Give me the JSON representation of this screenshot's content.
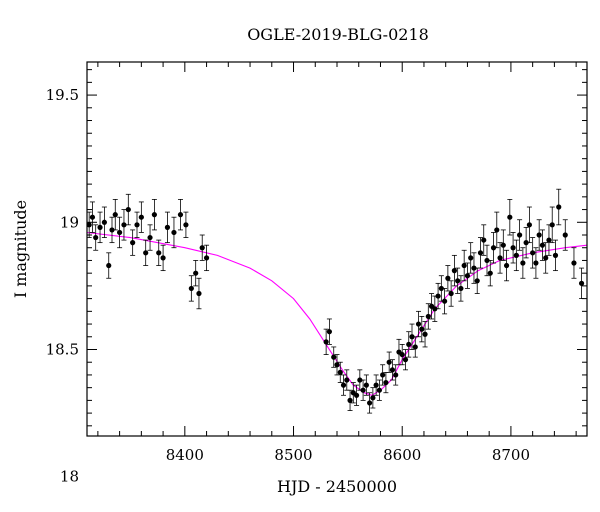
{
  "chart_data": {
    "type": "scatter",
    "title": "OGLE-2019-BLG-0218",
    "xlabel": "HJD - 2450000",
    "ylabel": "I magnitude",
    "xlim": [
      8310,
      8770
    ],
    "ylim": [
      19.63,
      18.16
    ],
    "y_inverted": true,
    "xticks": [
      8400,
      8500,
      8600,
      8700
    ],
    "yticks": [
      18,
      18.5,
      19,
      19.5
    ],
    "grid": false,
    "colors": {
      "points": "#000000",
      "model": "#ff00ff"
    },
    "model": {
      "name": "",
      "x": [
        8310,
        8350,
        8400,
        8430,
        8460,
        8480,
        8500,
        8515,
        8530,
        8545,
        8555,
        8565,
        8572,
        8580,
        8590,
        8600,
        8615,
        8630,
        8650,
        8670,
        8690,
        8720,
        8750,
        8770
      ],
      "y": [
        18.96,
        18.94,
        18.9,
        18.87,
        18.82,
        18.77,
        18.7,
        18.62,
        18.52,
        18.42,
        18.36,
        18.33,
        18.32,
        18.34,
        18.38,
        18.46,
        18.56,
        18.66,
        18.75,
        18.81,
        18.85,
        18.88,
        18.9,
        18.91
      ]
    },
    "series": [
      {
        "name": "",
        "x": [
          8312,
          8315,
          8318,
          8322,
          8326,
          8330,
          8333,
          8336,
          8340,
          8344,
          8348,
          8352,
          8356,
          8360,
          8364,
          8368,
          8372,
          8376,
          8380,
          8384,
          8390,
          8396,
          8401,
          8406,
          8410,
          8413,
          8416,
          8420,
          8530,
          8533,
          8537,
          8540,
          8543,
          8546,
          8549,
          8552,
          8555,
          8558,
          8561,
          8564,
          8567,
          8570,
          8573,
          8576,
          8579,
          8582,
          8585,
          8588,
          8591,
          8594,
          8597,
          8600,
          8603,
          8606,
          8609,
          8612,
          8615,
          8618,
          8621,
          8624,
          8627,
          8630,
          8633,
          8636,
          8639,
          8642,
          8645,
          8648,
          8651,
          8654,
          8657,
          8660,
          8663,
          8666,
          8669,
          8672,
          8675,
          8678,
          8681,
          8684,
          8687,
          8690,
          8693,
          8696,
          8699,
          8702,
          8705,
          8708,
          8711,
          8714,
          8717,
          8720,
          8723,
          8726,
          8729,
          8732,
          8735,
          8738,
          8741,
          8744,
          8750,
          8758,
          8765
        ],
        "y": [
          18.99,
          19.02,
          18.94,
          18.98,
          19.0,
          18.83,
          18.97,
          19.03,
          18.96,
          18.99,
          19.05,
          18.92,
          18.99,
          19.02,
          18.88,
          18.94,
          19.03,
          18.88,
          18.86,
          18.98,
          18.96,
          19.03,
          18.99,
          18.74,
          18.8,
          18.72,
          18.9,
          18.86,
          18.53,
          18.57,
          18.47,
          18.44,
          18.41,
          18.36,
          18.38,
          18.3,
          18.33,
          18.32,
          18.38,
          18.34,
          18.36,
          18.29,
          18.31,
          18.36,
          18.34,
          18.4,
          18.37,
          18.45,
          18.42,
          18.4,
          18.49,
          18.48,
          18.46,
          18.52,
          18.55,
          18.51,
          18.6,
          18.58,
          18.56,
          18.63,
          18.67,
          18.66,
          18.71,
          18.74,
          18.69,
          18.78,
          18.72,
          18.81,
          18.77,
          18.74,
          18.83,
          18.79,
          18.86,
          18.82,
          18.77,
          18.88,
          18.93,
          18.85,
          18.8,
          18.9,
          18.97,
          18.86,
          18.91,
          18.83,
          19.02,
          18.9,
          18.87,
          18.95,
          18.84,
          18.92,
          18.99,
          18.88,
          18.84,
          18.95,
          18.91,
          18.86,
          18.93,
          18.99,
          18.87,
          19.06,
          18.95,
          18.84,
          18.76
        ],
        "yerr": [
          0.05,
          0.06,
          0.05,
          0.06,
          0.06,
          0.05,
          0.05,
          0.06,
          0.06,
          0.06,
          0.06,
          0.05,
          0.05,
          0.06,
          0.05,
          0.05,
          0.06,
          0.05,
          0.05,
          0.06,
          0.06,
          0.06,
          0.05,
          0.05,
          0.05,
          0.06,
          0.05,
          0.05,
          0.05,
          0.05,
          0.04,
          0.04,
          0.04,
          0.04,
          0.04,
          0.04,
          0.04,
          0.04,
          0.04,
          0.04,
          0.04,
          0.04,
          0.04,
          0.04,
          0.04,
          0.04,
          0.04,
          0.04,
          0.04,
          0.04,
          0.05,
          0.04,
          0.04,
          0.05,
          0.05,
          0.04,
          0.05,
          0.05,
          0.05,
          0.05,
          0.05,
          0.05,
          0.05,
          0.05,
          0.05,
          0.05,
          0.05,
          0.06,
          0.05,
          0.05,
          0.06,
          0.05,
          0.06,
          0.06,
          0.05,
          0.06,
          0.06,
          0.06,
          0.05,
          0.06,
          0.07,
          0.06,
          0.06,
          0.06,
          0.07,
          0.06,
          0.06,
          0.06,
          0.06,
          0.06,
          0.07,
          0.06,
          0.06,
          0.06,
          0.06,
          0.06,
          0.06,
          0.07,
          0.06,
          0.07,
          0.06,
          0.06,
          0.06
        ]
      }
    ]
  }
}
